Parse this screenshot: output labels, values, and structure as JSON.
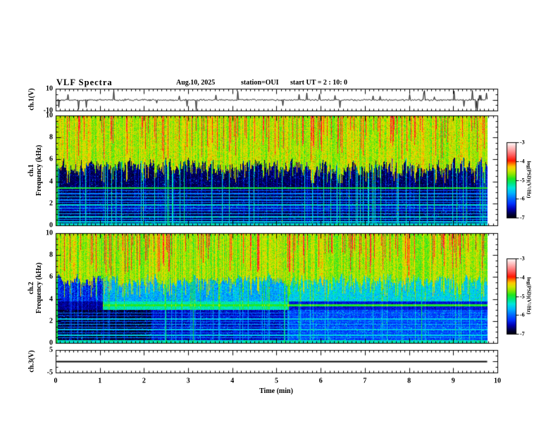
{
  "title": {
    "main": "VLF Spectra",
    "date": "Aug.10, 2025",
    "station": "station=OUI",
    "start_ut": "start UT =  2 : 10: 0"
  },
  "x_axis": {
    "label": "Time (min)",
    "min": 0,
    "max": 10,
    "ticks": [
      0,
      1,
      2,
      3,
      4,
      5,
      6,
      7,
      8,
      9,
      10
    ],
    "minor_tick": 0.1,
    "data_end_min": 9.78
  },
  "colorbar": {
    "label": "log(PSD)(V²/Hz)",
    "ticks": [
      -3,
      -4,
      -5,
      -6,
      -7
    ],
    "zmin": -7,
    "zmax": -3
  },
  "colormap_stops": [
    [
      0.0,
      "#000008"
    ],
    [
      0.05,
      "#00003c"
    ],
    [
      0.12,
      "#0000b4"
    ],
    [
      0.19,
      "#0032ff"
    ],
    [
      0.25,
      "#0064ff"
    ],
    [
      0.33,
      "#00b4ff"
    ],
    [
      0.4,
      "#00e6dc"
    ],
    [
      0.46,
      "#00e67d"
    ],
    [
      0.52,
      "#1ee61e"
    ],
    [
      0.58,
      "#8ce600"
    ],
    [
      0.63,
      "#d2e600"
    ],
    [
      0.68,
      "#ffc800"
    ],
    [
      0.72,
      "#ff7800"
    ],
    [
      0.76,
      "#ff1400"
    ],
    [
      0.83,
      "#ff5a5a"
    ],
    [
      0.9,
      "#ffa0a0"
    ],
    [
      0.96,
      "#ffd7d7"
    ],
    [
      1.0,
      "#ffffff"
    ]
  ],
  "chart_data": [
    {
      "id": "ch1-waveform",
      "type": "line",
      "ylabel": "ch.1(V)",
      "ylim": [
        -10,
        10
      ],
      "yticks": [
        10,
        -10
      ],
      "description": "Noisy voltage trace centered on 0 V with frequent impulsive spikes up to about ±9 V across the full 0–9.78 min record",
      "texture": {
        "seed": 424242,
        "sigma": 1.1,
        "spike_prob": 0.05,
        "spike_min": 2.5,
        "spike_max": 9.5
      }
    },
    {
      "id": "ch1-spectrogram",
      "type": "heatmap",
      "ylabel_lines": [
        "ch.1",
        "Frequency (kHz)"
      ],
      "ylim": [
        0,
        10
      ],
      "yticks": [
        0,
        2,
        4,
        6,
        8,
        10
      ],
      "minor_tick": 0.5,
      "zlim": [
        -7,
        -3
      ],
      "features": [
        "Broadband yellow-green band above ~5 kHz with dense red sferic streaks reaching down from 10 kHz",
        "Dark blue/black region below ~5 kHz with vertical cyan impulses",
        "Bright green horizontal line near 3.4 kHz plus weaker harmonic lines below 3 kHz",
        "Speckled green band at the very bottom (0–0.2 kHz)"
      ],
      "texture": {
        "seed": 20250810,
        "upper_base": -4.55,
        "upper_noise": 0.4,
        "boundary_range": [
          4.3,
          6.5
        ],
        "streak_prob": 0.18,
        "streak_val": -3.85,
        "lower_base": -6.75,
        "lower_noise": 0.3,
        "bright_col_prob": 0.06,
        "bright_boost": 1.5,
        "mid_col_prob": 0.2,
        "mid_boost": 0.55,
        "speckle_prob": 0.06,
        "speckle_boost": 1.0,
        "cyan_band": [
          1.35,
          1.95,
          0.25
        ],
        "harmonic_lines": [
          [
            3.42,
            0.07,
            -5.0
          ],
          [
            3.2,
            0.04,
            -6.05
          ],
          [
            2.9,
            0.04,
            -5.9
          ],
          [
            2.6,
            0.04,
            -5.6
          ],
          [
            2.33,
            0.04,
            -5.85
          ],
          [
            2.1,
            0.04,
            -6.0
          ],
          [
            1.85,
            0.06,
            -5.45
          ],
          [
            1.6,
            0.04,
            -5.65
          ],
          [
            1.32,
            0.04,
            -5.85
          ],
          [
            1.05,
            0.04,
            -5.7
          ],
          [
            0.8,
            0.06,
            -5.5
          ],
          [
            0.55,
            0.04,
            -5.8
          ],
          [
            0.33,
            0.04,
            -5.5
          ]
        ],
        "bottom_band": [
          0.22,
          -5.4
        ],
        "full_line_prob": 0.015
      }
    },
    {
      "id": "ch2-spectrogram",
      "type": "heatmap",
      "ylabel_lines": [
        "ch.2",
        "Frequency (kHz)"
      ],
      "ylim": [
        0,
        10
      ],
      "yticks": [
        0,
        2,
        4,
        6,
        8,
        10
      ],
      "minor_tick": 0.5,
      "zlim": [
        -7,
        -3
      ],
      "features": [
        "Yellow-green band above ~6 kHz with red sferic streaks",
        "Cyan speckle between ~4 and 6 kHz after 1 min; dark/quiet below 6 kHz during the first minute",
        "Wide green-cyan band 3.1–3.8 kHz from ~1.05 to ~5.25 min, collapsing to a thin green line near 3.5 kHz afterwards",
        "Very dark patch below 3 kHz from ~0.1 to ~2.1 min; brighter blue speckle below 3 kHz after ~5.25 min",
        "Harmonic horizontal lines below 3 kHz and speckled green band at 0–0.3 kHz"
      ],
      "texture": {
        "seed": 87151,
        "upper_base": -4.6,
        "upper_noise": 0.4,
        "boundary_range": [
          4.8,
          6.6
        ],
        "streak_prob": 0.17,
        "streak_val": -3.85,
        "mid_split": 3.8,
        "mid_val_quiet": -6.35,
        "mid_val": -5.75,
        "mid_val_late": -5.55,
        "mid_noise": 0.45,
        "low_val_blob": -6.85,
        "low_val": -6.5,
        "low_val_late": -6.2,
        "low_noise": 0.3,
        "quiet_end_min": 1.05,
        "blob_end_min": 2.15,
        "step_min": 5.25,
        "band": {
          "f0": 3.05,
          "f1": 3.8,
          "core0": 3.36,
          "core1": 3.58,
          "wide_val": -5.3,
          "core_val": -4.95,
          "dark_val": -6.4
        },
        "bright_col_prob": 0.07,
        "bright_boost": 1.3,
        "mid_col_prob": 0.18,
        "mid_boost": 0.5,
        "speckle_prob": 0.08,
        "speckle_boost": 0.9,
        "harmonic_lines": [
          [
            2.75,
            0.04,
            -5.95
          ],
          [
            2.5,
            0.04,
            -6.1
          ],
          [
            2.22,
            0.06,
            -5.55
          ],
          [
            1.97,
            0.04,
            -6.0
          ],
          [
            1.72,
            0.04,
            -5.7
          ],
          [
            1.47,
            0.04,
            -5.9
          ],
          [
            1.2,
            0.06,
            -5.6
          ],
          [
            0.95,
            0.04,
            -6.0
          ],
          [
            0.7,
            0.06,
            -5.5
          ],
          [
            0.47,
            0.04,
            -5.85
          ]
        ],
        "bottom_band": [
          0.28,
          -5.35
        ],
        "full_line_prob": 0.012
      }
    },
    {
      "id": "ch3-waveform",
      "type": "line",
      "ylabel": "ch.3(V)",
      "ylim": [
        -5,
        5
      ],
      "yticks": [
        5,
        -5
      ],
      "constant_value": 0,
      "description": "Flat line at 0 V for the whole record"
    }
  ]
}
